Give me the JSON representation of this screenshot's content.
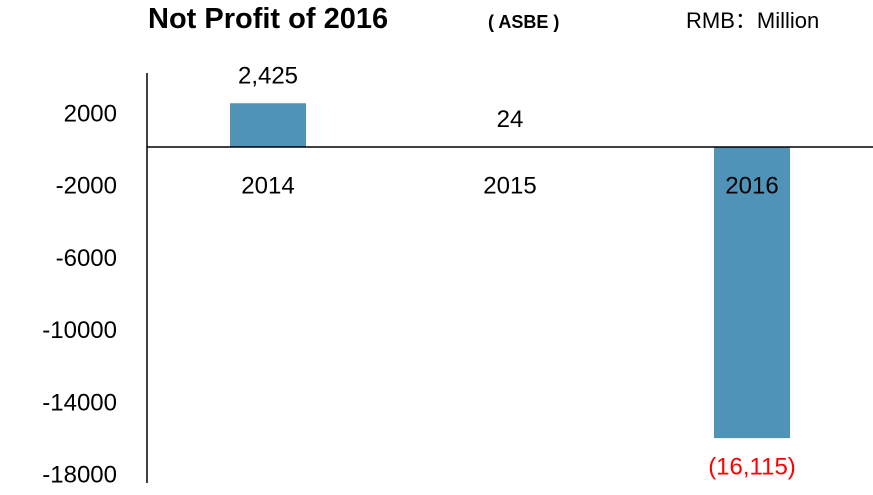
{
  "chart_data": {
    "type": "bar",
    "title": "Not Profit of 2016",
    "subtitle": "( ASBE )",
    "unit": "RMB：Million",
    "categories": [
      "2014",
      "2015",
      "2016"
    ],
    "values": [
      2425,
      24,
      -16115
    ],
    "value_labels": [
      "2,425",
      "24",
      "(16,115)"
    ],
    "colors": [
      "#4f93b8",
      "#1f6fbd",
      "#4f93b8"
    ],
    "value_label_colors": [
      "#000000",
      "#000000",
      "#ff0000"
    ],
    "ylim": [
      -18600,
      4100
    ],
    "yticks": [
      2000,
      -2000,
      -6000,
      -10000,
      -14000,
      -18000
    ],
    "grid": false
  }
}
